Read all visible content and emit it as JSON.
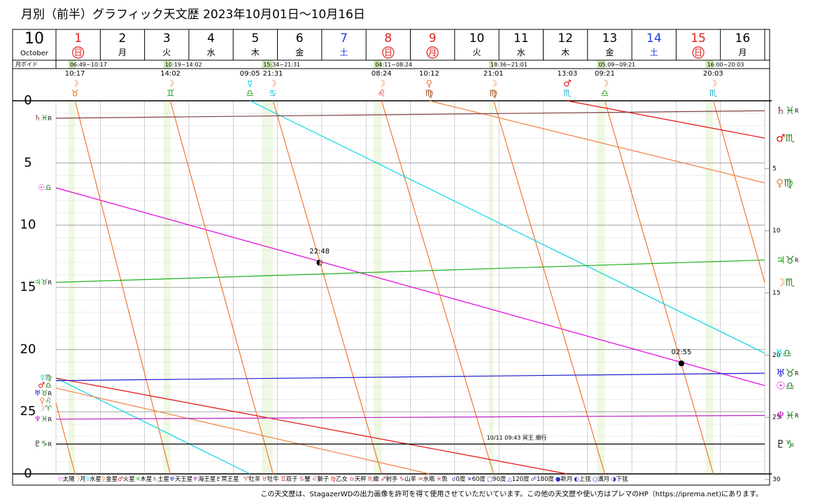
{
  "title": "月別（前半）グラフィック天文歴  2023年10月01日～10月16日",
  "month": {
    "number": "10",
    "name": "October"
  },
  "days": [
    {
      "day": 1,
      "weekday": "日",
      "circle": true,
      "color": "#e02020"
    },
    {
      "day": 2,
      "weekday": "月",
      "color": "#000000"
    },
    {
      "day": 3,
      "weekday": "火",
      "color": "#000000"
    },
    {
      "day": 4,
      "weekday": "水",
      "color": "#000000"
    },
    {
      "day": 5,
      "weekday": "木",
      "color": "#000000"
    },
    {
      "day": 6,
      "weekday": "金",
      "color": "#000000"
    },
    {
      "day": 7,
      "weekday": "土",
      "color": "#2040e0"
    },
    {
      "day": 8,
      "weekday": "日",
      "circle": true,
      "color": "#e02020"
    },
    {
      "day": 9,
      "weekday": "月",
      "circle": true,
      "color": "#e02020"
    },
    {
      "day": 10,
      "weekday": "火",
      "color": "#000000"
    },
    {
      "day": 11,
      "weekday": "水",
      "color": "#000000"
    },
    {
      "day": 12,
      "weekday": "木",
      "color": "#000000"
    },
    {
      "day": 13,
      "weekday": "金",
      "color": "#000000"
    },
    {
      "day": 14,
      "weekday": "土",
      "color": "#2040e0"
    },
    {
      "day": 15,
      "weekday": "日",
      "circle": true,
      "color": "#e02020"
    },
    {
      "day": 16,
      "weekday": "月",
      "color": "#000000"
    }
  ],
  "void_label": "月ボイド",
  "voids": [
    {
      "day": 1,
      "period": "06:49~10:17"
    },
    {
      "day": 3,
      "period": "10:19~14:02"
    },
    {
      "day": 5,
      "period": "15:34~21:31"
    },
    {
      "day": 8,
      "period": "04:11~08:24"
    },
    {
      "day": 10,
      "period": "18:36~21:01"
    },
    {
      "day": 13,
      "period": "05:09~09:21"
    },
    {
      "day": 15,
      "period": "16:00~20:03"
    }
  ],
  "ingresses": [
    {
      "day": 1,
      "time": "10:17",
      "planet": "☽",
      "sign": "♉",
      "color": "#e07020"
    },
    {
      "day": 3,
      "time": "14:02",
      "planet": "☽",
      "sign": "♊",
      "color": "#20a020"
    },
    {
      "day": 5,
      "time": "09:05",
      "planet": "☿",
      "sign": "♎",
      "color": "#20a020"
    },
    {
      "day": 5,
      "time": "21:31",
      "planet": "☽",
      "sign": "♋",
      "color": "#20c0e0"
    },
    {
      "day": 8,
      "time": "08:24",
      "planet": "☽",
      "sign": "♌",
      "color": "#e02020"
    },
    {
      "day": 9,
      "time": "10:12",
      "planet": "♀",
      "sign": "♍",
      "color": "#a04010"
    },
    {
      "day": 10,
      "time": "21:01",
      "planet": "☽",
      "sign": "♍",
      "color": "#a04010"
    },
    {
      "day": 12,
      "time": "13:03",
      "planet": "♂",
      "sign": "♏",
      "color": "#20b0d0"
    },
    {
      "day": 13,
      "time": "09:21",
      "planet": "☽",
      "sign": "♎",
      "color": "#20a020"
    },
    {
      "day": 15,
      "time": "20:03",
      "planet": "☽",
      "sign": "♏",
      "color": "#20b0d0"
    }
  ],
  "chart_data": {
    "type": "line",
    "xlim": [
      0,
      16
    ],
    "ylim": [
      0,
      30
    ],
    "yticks": [
      0,
      5,
      10,
      15,
      20,
      25,
      {
        "value": 30,
        "label": "0"
      }
    ],
    "y2ticks": [
      5,
      10,
      15,
      20,
      25,
      30
    ],
    "series": [
      {
        "name": "太陽",
        "symbol": "☉",
        "color": "#e000e0",
        "sign_start": "♎",
        "sign_end": "♎",
        "x": [
          0,
          16
        ],
        "values": [
          7.0,
          22.9
        ]
      },
      {
        "name": "月",
        "symbol": "☽",
        "color": "#f07830",
        "sign_start": "♈",
        "sign_end": "♏",
        "x": [
          0,
          0.43,
          null,
          0.43,
          2.58,
          null,
          2.58,
          4.9,
          null,
          4.9,
          7.35,
          null,
          7.35,
          9.88,
          null,
          9.88,
          12.39,
          null,
          12.39,
          14.84,
          null,
          14.84,
          16
        ],
        "values": [
          24.3,
          30,
          null,
          0,
          30,
          null,
          0,
          30,
          null,
          0,
          30,
          null,
          0,
          30,
          null,
          0,
          30,
          null,
          0,
          30,
          null,
          0,
          14.6
        ]
      },
      {
        "name": "水星",
        "symbol": "☿",
        "color": "#00d8e0",
        "sign_start": "♍",
        "sign_end": "♎",
        "x": [
          0,
          4.38,
          null,
          4.38,
          16
        ],
        "values": [
          22.3,
          30,
          null,
          0,
          20.3
        ]
      },
      {
        "name": "金星",
        "symbol": "♀",
        "color": "#f08040",
        "sign_start": "♌",
        "sign_end": "♍",
        "x": [
          0,
          8.43,
          null,
          8.43,
          16
        ],
        "values": [
          23.1,
          30,
          null,
          0,
          6.6
        ]
      },
      {
        "name": "火星",
        "symbol": "♂",
        "color": "#e01010",
        "sign_start": "♎",
        "sign_end": "♏",
        "x": [
          0,
          11.54,
          null,
          11.54,
          16
        ],
        "values": [
          22.3,
          30,
          null,
          0,
          3.0
        ]
      },
      {
        "name": "木星",
        "symbol": "♃",
        "color": "#20b020",
        "sign_start": "♉",
        "sign_end": "♉",
        "mark_start": "R",
        "mark_end": "R",
        "x": [
          0,
          16
        ],
        "values": [
          14.6,
          12.8
        ]
      },
      {
        "name": "土星",
        "symbol": "♄",
        "color": "#804040",
        "sign_start": "♓",
        "sign_end": "♓",
        "mark_start": "R",
        "mark_end": "R",
        "x": [
          0,
          16
        ],
        "values": [
          1.4,
          0.8
        ]
      },
      {
        "name": "天王星",
        "symbol": "♅",
        "color": "#2020d0",
        "sign_start": "♉",
        "sign_end": "♉",
        "mark_start": "R",
        "mark_end": "R",
        "x": [
          0,
          16
        ],
        "values": [
          22.5,
          21.9
        ]
      },
      {
        "name": "海王星",
        "symbol": "♆",
        "color": "#c020c0",
        "sign_start": "♓",
        "sign_end": "♓",
        "mark_start": "R",
        "mark_end": "R",
        "x": [
          0,
          16
        ],
        "values": [
          25.6,
          25.3
        ]
      },
      {
        "name": "冥王星",
        "symbol": "♇",
        "color": "#000000",
        "sign_start": "♑",
        "sign_end": "♑",
        "mark_start": "R",
        "x": [
          0,
          16
        ],
        "values": [
          27.6,
          27.6
        ]
      }
    ],
    "annotations": [
      {
        "label": "22:48",
        "symbol": "◐",
        "x": 5.95,
        "y": 13.0
      },
      {
        "label": "02:55",
        "symbol": "●",
        "x": 14.12,
        "y": 21.1
      },
      {
        "label": "10/11 09:43 冥王 順行",
        "x": 10.4,
        "y": 27.1
      }
    ]
  },
  "signs": [
    {
      "symbol": "♈",
      "name": "牡羊"
    },
    {
      "symbol": "♉",
      "name": "牡牛"
    },
    {
      "symbol": "♊",
      "name": "双子"
    },
    {
      "symbol": "♋",
      "name": "蟹"
    },
    {
      "symbol": "♌",
      "name": "獅子"
    },
    {
      "symbol": "♍",
      "name": "乙女"
    },
    {
      "symbol": "♎",
      "name": "天秤"
    },
    {
      "symbol": "♏",
      "name": "蠍"
    },
    {
      "symbol": "♐",
      "name": "射手"
    },
    {
      "symbol": "♑",
      "name": "山羊"
    },
    {
      "symbol": "♒",
      "name": "水瓶"
    },
    {
      "symbol": "♓",
      "name": "魚"
    }
  ],
  "aspects": [
    {
      "symbol": "☌",
      "name": "0度"
    },
    {
      "symbol": "✕",
      "name": "60度"
    },
    {
      "symbol": "□",
      "name": "90度"
    },
    {
      "symbol": "△",
      "name": "120度"
    },
    {
      "symbol": "☍",
      "name": "180度"
    },
    {
      "symbol": "●",
      "name": "新月"
    },
    {
      "symbol": "◐",
      "name": "上弦"
    },
    {
      "symbol": "○",
      "name": "満月"
    },
    {
      "symbol": "◑",
      "name": "下弦"
    }
  ],
  "footer": "この天文歴は、StagazerWDの出力画像を許可を得て使用させていただいています。この他の天文歴や使い方はプレマのHP（https://iprema.net)にあります。"
}
